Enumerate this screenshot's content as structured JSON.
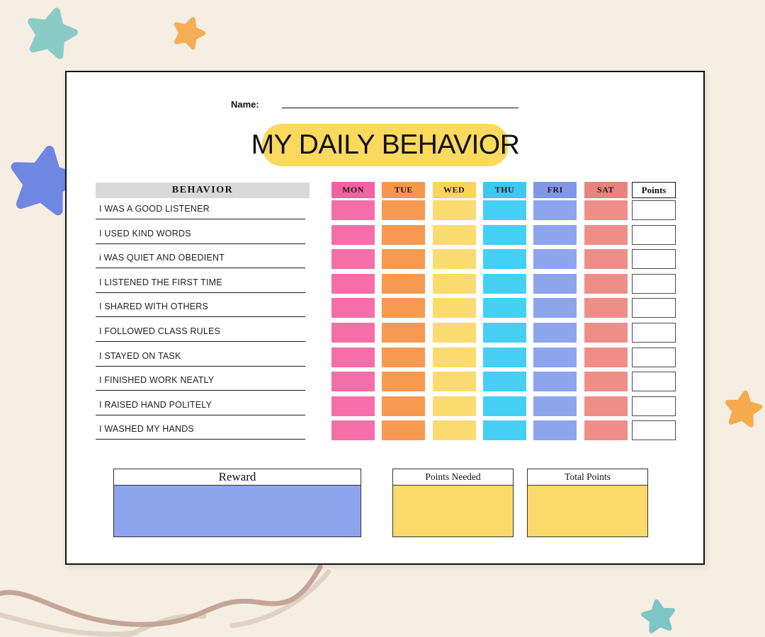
{
  "background": {
    "color": "#F6EEE2",
    "decor": [
      {
        "name": "star-teal-top-left",
        "color": "#8BCBC6"
      },
      {
        "name": "star-orange-top",
        "color": "#F5AD56"
      },
      {
        "name": "star-blue-left",
        "color": "#6F86E2"
      },
      {
        "name": "star-orange-right",
        "color": "#F5AB4E"
      },
      {
        "name": "star-teal-bottom",
        "color": "#7EC5C7"
      },
      {
        "name": "squiggle-dark",
        "color": "#C2A698"
      },
      {
        "name": "squiggle-light",
        "color": "#DFD2C5"
      }
    ]
  },
  "sheet": {
    "name_label": "Name:",
    "title": "MY DAILY BEHAVIOR",
    "title_bg": "#FBD95E"
  },
  "table": {
    "behavior_header": "BEHAVIOR",
    "behavior_header_bg": "#D9D9D9",
    "points_header": "Points",
    "days": [
      {
        "label": "MON",
        "header_color": "#F261A2",
        "cell_color": "#F56EA7"
      },
      {
        "label": "TUE",
        "header_color": "#F8964C",
        "cell_color": "#F89951"
      },
      {
        "label": "WED",
        "header_color": "#FBD45C",
        "cell_color": "#FBDA70"
      },
      {
        "label": "THU",
        "header_color": "#3CC8F0",
        "cell_color": "#45CFF5"
      },
      {
        "label": "FRI",
        "header_color": "#8097E8",
        "cell_color": "#8DA4EE"
      },
      {
        "label": "SAT",
        "header_color": "#E8837E",
        "cell_color": "#EF8E88"
      }
    ],
    "behaviors": [
      "I WAS A GOOD LISTENER",
      "I USED KIND WORDS",
      "i WAS QUIET AND OBEDIENT",
      "I LISTENED THE FIRST TIME",
      "I SHARED WITH OTHERS",
      "I FOLLOWED CLASS RULES",
      "I STAYED ON TASK",
      "I FINISHED WORK NEATLY",
      "I RAISED HAND POLITELY",
      "I WASHED MY HANDS"
    ]
  },
  "footer": {
    "reward_label": "Reward",
    "reward_fill": "#8DA4EF",
    "points_needed_label": "Points Needed",
    "points_needed_fill": "#FBD96B",
    "total_points_label": "Total Points",
    "total_points_fill": "#FBD96B"
  }
}
